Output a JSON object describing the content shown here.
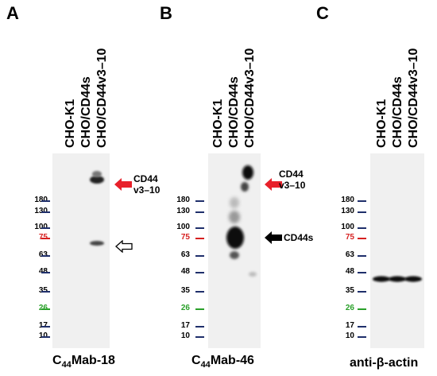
{
  "panels": [
    {
      "letter": "A",
      "lanes": [
        "CHO-K1",
        "CHO/CD44s",
        "CHO/CD44v3–10"
      ],
      "antibody_prefix": "C",
      "antibody_sub": "44",
      "antibody_suffix": "Mab-18",
      "annotations": [
        {
          "arrow": "red-filled",
          "lines": [
            "CD44",
            "v3–10"
          ]
        },
        {
          "arrow": "outline",
          "lines": []
        }
      ]
    },
    {
      "letter": "B",
      "lanes": [
        "CHO-K1",
        "CHO/CD44s",
        "CHO/CD44v3–10"
      ],
      "antibody_prefix": "C",
      "antibody_sub": "44",
      "antibody_suffix": "Mab-46",
      "annotations": [
        {
          "arrow": "red-filled",
          "lines": [
            "CD44",
            "v3–10"
          ]
        },
        {
          "arrow": "black-filled",
          "lines": [
            "CD44s"
          ]
        }
      ]
    },
    {
      "letter": "C",
      "lanes": [
        "CHO-K1",
        "CHO/CD44s",
        "CHO/CD44v3–10"
      ],
      "antibody_label": "anti-β-actin",
      "annotations": []
    }
  ],
  "markers": [
    {
      "label": "180",
      "color": "#1f2f6b"
    },
    {
      "label": "130",
      "color": "#1f2f6b"
    },
    {
      "label": "100",
      "color": "#1f2f6b"
    },
    {
      "label": "75",
      "color": "#d62020"
    },
    {
      "label": "63",
      "color": "#1f2f6b"
    },
    {
      "label": "48",
      "color": "#1f2f6b"
    },
    {
      "label": "35",
      "color": "#1f2f6b"
    },
    {
      "label": "26",
      "color": "#2aa02a"
    },
    {
      "label": "17",
      "color": "#1f2f6b"
    },
    {
      "label": "10",
      "color": "#1f2f6b"
    }
  ],
  "colors": {
    "marker_text": "#000000",
    "arrow_red": "#e8202a",
    "arrow_black": "#000000"
  }
}
